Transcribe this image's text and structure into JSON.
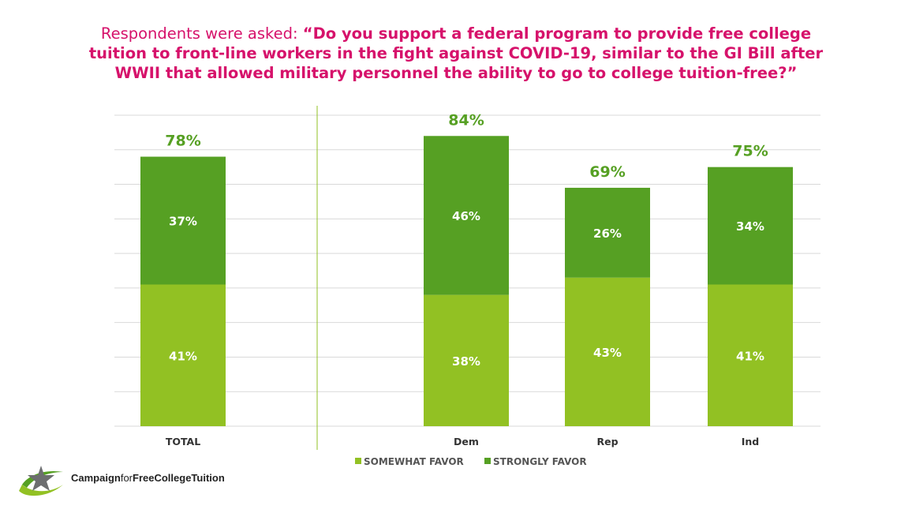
{
  "title": {
    "lead": "Respondents were asked: ",
    "question": "“Do you support a federal program to provide free college tuition to front-line workers in the fight against COVID-19, similar to the GI Bill after WWII that allowed military personnel the ability to go to college tuition-free?”"
  },
  "chart_data": {
    "type": "bar",
    "stacked": true,
    "categories": [
      "TOTAL",
      "Dem",
      "Rep",
      "Ind"
    ],
    "series": [
      {
        "name": "SOMEWHAT FAVOR",
        "values": [
          41,
          38,
          43,
          41
        ],
        "color": "#92c123"
      },
      {
        "name": "STRONGLY FAVOR",
        "values": [
          37,
          46,
          26,
          34
        ],
        "color": "#56a023"
      }
    ],
    "totals": [
      78,
      84,
      69,
      75
    ],
    "value_suffix": "%",
    "ylim": [
      0,
      90
    ],
    "grid": true,
    "legend": "bottom-center",
    "divider_after_category": "TOTAL",
    "colors": {
      "total_label": "#56a023",
      "inner_label": "#ffffff",
      "grid": "#d9d9d9",
      "divider": "#92c123",
      "tick": "#333333"
    }
  },
  "logo": {
    "part1": "Campaign",
    "part2": "for",
    "part3": "FreeCollegeTuition",
    "icon": "star-swoosh-icon"
  }
}
